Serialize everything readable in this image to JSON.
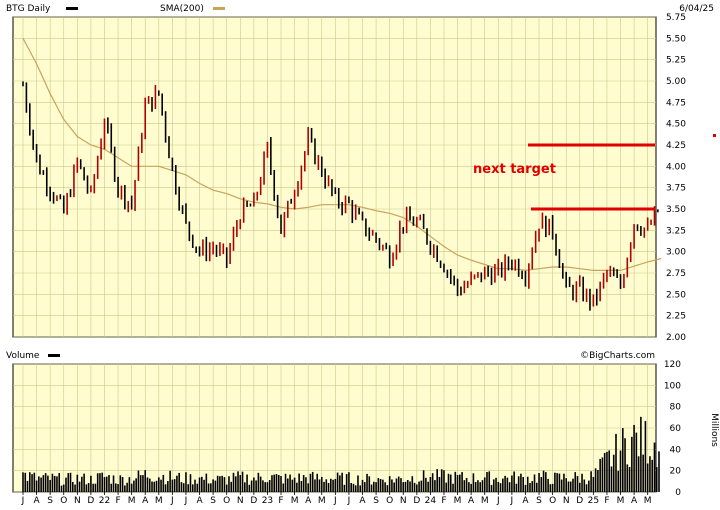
{
  "header": {
    "symbol_label": "BTG Daily",
    "sma_label": "SMA(200)",
    "date": "6/04/25",
    "volume_label": "Volume",
    "watermark": "©BigCharts.com",
    "millions_label": "Millions"
  },
  "colors": {
    "panel_bg": "#fffdd0",
    "grid": "#c8c88c",
    "price": "#000000",
    "up_candle": "#b00000",
    "sma": "#c9a35a",
    "annotation": "#e00000"
  },
  "chart_data": [
    {
      "type": "line",
      "title": "BTG Daily",
      "ylim": [
        2.0,
        5.75
      ],
      "y_ticks": [
        "2.00",
        "2.25",
        "2.50",
        "2.75",
        "3.00",
        "3.25",
        "3.50",
        "3.75",
        "4.00",
        "4.25",
        "4.50",
        "4.75",
        "5.00",
        "5.25",
        "5.50",
        "5.75"
      ],
      "x_ticks": [
        "J",
        "A",
        "S",
        "O",
        "N",
        "D",
        "22",
        "F",
        "M",
        "A",
        "M",
        "J",
        "J",
        "A",
        "S",
        "O",
        "N",
        "D",
        "23",
        "F",
        "M",
        "A",
        "M",
        "J",
        "J",
        "A",
        "S",
        "O",
        "N",
        "D",
        "24",
        "F",
        "M",
        "A",
        "M",
        "J",
        "J",
        "A",
        "S",
        "O",
        "N",
        "D",
        "25",
        "F",
        "M",
        "A",
        "M"
      ],
      "x": [
        "2021-07",
        "2021-08",
        "2021-09",
        "2021-10",
        "2021-11",
        "2021-12",
        "2022-01",
        "2022-02",
        "2022-03",
        "2022-04",
        "2022-05",
        "2022-06",
        "2022-07",
        "2022-08",
        "2022-09",
        "2022-10",
        "2022-11",
        "2022-12",
        "2023-01",
        "2023-02",
        "2023-03",
        "2023-04",
        "2023-05",
        "2023-06",
        "2023-07",
        "2023-08",
        "2023-09",
        "2023-10",
        "2023-11",
        "2023-12",
        "2024-01",
        "2024-02",
        "2024-03",
        "2024-04",
        "2024-05",
        "2024-06",
        "2024-07",
        "2024-08",
        "2024-09",
        "2024-10",
        "2024-11",
        "2024-12",
        "2025-01",
        "2025-02",
        "2025-03",
        "2025-04",
        "2025-05",
        "2025-06"
      ],
      "series": [
        {
          "name": "BTG Daily",
          "values": [
            4.95,
            4.05,
            3.75,
            3.45,
            4.05,
            3.65,
            4.55,
            3.75,
            3.55,
            4.7,
            4.85,
            3.95,
            3.3,
            3.0,
            3.05,
            2.9,
            3.45,
            3.55,
            4.2,
            3.25,
            3.75,
            4.3,
            3.95,
            3.6,
            3.55,
            3.3,
            3.15,
            2.95,
            3.35,
            3.35,
            3.1,
            2.85,
            2.55,
            2.65,
            2.75,
            2.75,
            2.9,
            2.75,
            3.35,
            3.25,
            2.55,
            2.55,
            2.4,
            2.75,
            2.6,
            3.35,
            3.25,
            3.55
          ]
        },
        {
          "name": "SMA(200)",
          "values": [
            5.5,
            5.2,
            4.85,
            4.55,
            4.35,
            4.25,
            4.2,
            4.1,
            4.0,
            4.0,
            4.0,
            3.95,
            3.9,
            3.8,
            3.72,
            3.68,
            3.62,
            3.58,
            3.56,
            3.52,
            3.5,
            3.52,
            3.55,
            3.55,
            3.55,
            3.52,
            3.48,
            3.45,
            3.4,
            3.3,
            3.18,
            3.06,
            2.96,
            2.9,
            2.85,
            2.8,
            2.8,
            2.78,
            2.8,
            2.82,
            2.82,
            2.8,
            2.78,
            2.78,
            2.78,
            2.83,
            2.88,
            2.92
          ]
        }
      ],
      "annotations": [
        {
          "text": "next target",
          "y": 4.25
        },
        {
          "text": "",
          "y": 3.5
        }
      ]
    },
    {
      "type": "bar",
      "title": "Volume",
      "ylabel": "Millions",
      "ylim": [
        0,
        120
      ],
      "y_ticks": [
        "0",
        "20",
        "40",
        "60",
        "80",
        "100",
        "120"
      ],
      "x": [
        "2021-07",
        "2021-08",
        "2021-09",
        "2021-10",
        "2021-11",
        "2021-12",
        "2022-01",
        "2022-02",
        "2022-03",
        "2022-04",
        "2022-05",
        "2022-06",
        "2022-07",
        "2022-08",
        "2022-09",
        "2022-10",
        "2022-11",
        "2022-12",
        "2023-01",
        "2023-02",
        "2023-03",
        "2023-04",
        "2023-05",
        "2023-06",
        "2023-07",
        "2023-08",
        "2023-09",
        "2023-10",
        "2023-11",
        "2023-12",
        "2024-01",
        "2024-02",
        "2024-03",
        "2024-04",
        "2024-05",
        "2024-06",
        "2024-07",
        "2024-08",
        "2024-09",
        "2024-10",
        "2024-11",
        "2024-12",
        "2025-01",
        "2025-02",
        "2025-03",
        "2025-04",
        "2025-05",
        "2025-06"
      ],
      "values": [
        18,
        14,
        14,
        13,
        14,
        13,
        16,
        13,
        14,
        18,
        17,
        15,
        14,
        14,
        13,
        13,
        15,
        14,
        16,
        14,
        14,
        15,
        14,
        14,
        14,
        13,
        13,
        13,
        14,
        15,
        16,
        16,
        15,
        14,
        15,
        14,
        15,
        14,
        16,
        14,
        15,
        15,
        16,
        32,
        45,
        55,
        52,
        50
      ]
    }
  ]
}
